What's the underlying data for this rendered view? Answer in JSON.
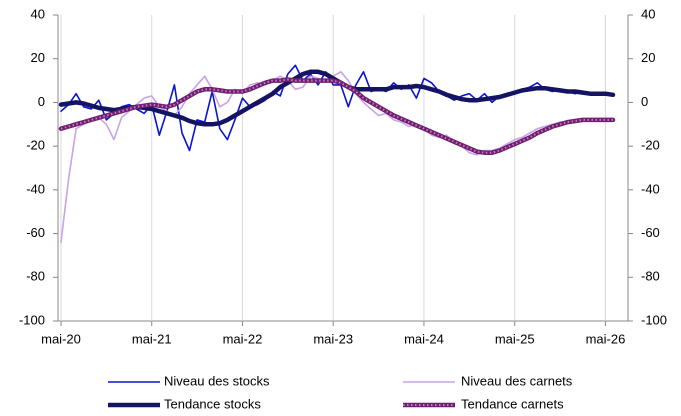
{
  "chart_data": {
    "type": "line",
    "categories": [
      "mai-20",
      null,
      null,
      null,
      null,
      null,
      null,
      null,
      null,
      null,
      null,
      null,
      "mai-21",
      null,
      null,
      null,
      null,
      null,
      null,
      null,
      null,
      null,
      null,
      null,
      "mai-22",
      null,
      null,
      null,
      null,
      null,
      null,
      null,
      null,
      null,
      null,
      null,
      "mai-23",
      null,
      null,
      null,
      null,
      null,
      null,
      null,
      null,
      null,
      null,
      null,
      "mai-24",
      null,
      null,
      null,
      null,
      null,
      null,
      null,
      null,
      null,
      null,
      null,
      "mai-25",
      null,
      null,
      null,
      null,
      null,
      null,
      null,
      null,
      null,
      null,
      null,
      "mai-26",
      null
    ],
    "ylim": [
      -100,
      40
    ],
    "yticks": [
      40,
      20,
      0,
      -20,
      -40,
      -60,
      -80,
      -100
    ],
    "y2lim": [
      -100,
      40
    ],
    "y2ticks": [
      40,
      20,
      0,
      -20,
      -40,
      -60,
      -80,
      -100
    ],
    "grid": "x",
    "series": [
      {
        "name": "Niveau des stocks",
        "color": "#0a14d2",
        "width": 1.6,
        "values": [
          -4,
          -1,
          4,
          -2,
          -3,
          1,
          -8,
          -5,
          -2,
          -1,
          -3,
          -5,
          -1,
          -15,
          -4,
          8,
          -14,
          -22,
          -8,
          -9,
          5,
          -12,
          -17,
          -8,
          2,
          -2,
          -1,
          1,
          5,
          3,
          13,
          17,
          10,
          13,
          8,
          14,
          8,
          8,
          -2,
          8,
          14,
          5,
          6,
          5,
          9,
          6,
          8,
          2,
          11,
          9,
          5,
          3,
          1,
          3,
          4,
          1,
          4,
          0,
          3,
          4,
          5,
          6,
          7,
          9,
          6,
          5,
          6,
          5,
          4,
          5,
          4,
          4,
          4,
          4
        ]
      },
      {
        "name": "Niveau des carnets",
        "color": "#c9a2ea",
        "width": 1.6,
        "values": [
          -64,
          -35,
          -12,
          -10,
          -8,
          -7,
          -10,
          -17,
          -7,
          -4,
          -1,
          2,
          3,
          -2,
          -4,
          -6,
          -2,
          4,
          8,
          12,
          6,
          -2,
          0,
          6,
          4,
          8,
          9,
          8,
          10,
          12,
          10,
          6,
          7,
          12,
          11,
          10,
          12,
          14,
          10,
          4,
          0,
          -3,
          -6,
          -5,
          -8,
          -9,
          -11,
          -10,
          -12,
          -15,
          -16,
          -15,
          -18,
          -20,
          -23,
          -24,
          -22,
          -22,
          -21,
          -19,
          -17,
          -16,
          -14,
          -12,
          -11,
          -10,
          -9,
          -9,
          -8,
          -8,
          -8,
          -8,
          -8,
          -8
        ]
      },
      {
        "name": "Tendance stocks",
        "color": "#141463",
        "width": 4.5,
        "values": [
          -1,
          -0.5,
          0,
          -0.5,
          -1.5,
          -2.5,
          -3,
          -3.5,
          -3,
          -2.5,
          -2,
          -2.5,
          -3,
          -4,
          -5,
          -6,
          -7,
          -8.5,
          -9.5,
          -10,
          -10,
          -9.5,
          -8,
          -6,
          -4,
          -2,
          0,
          2,
          4,
          7,
          9,
          11,
          13,
          14,
          14,
          13,
          11,
          9,
          7,
          6,
          6,
          6,
          6,
          6,
          7,
          7,
          7,
          7.5,
          7,
          6,
          5,
          3.5,
          2.5,
          1.5,
          1,
          1,
          1.5,
          2,
          2.5,
          3.5,
          4.5,
          5.5,
          6,
          6.5,
          6.5,
          6,
          5.5,
          5,
          5,
          4.5,
          4,
          4,
          4,
          3.5
        ]
      },
      {
        "name": "Tendance carnets",
        "color": "#6e1f6e",
        "width": 4.5,
        "dot_color": "#c77ac7",
        "values": [
          -12,
          -11,
          -10,
          -9,
          -8,
          -7,
          -6,
          -5,
          -4,
          -3,
          -2,
          -1.5,
          -1,
          -1.5,
          -2,
          -1,
          1,
          3,
          5,
          6,
          6,
          5.5,
          5,
          5,
          5,
          6,
          7.5,
          9,
          10,
          10,
          10.5,
          10,
          10,
          10,
          10,
          10,
          10,
          9,
          7,
          5,
          2,
          0,
          -2,
          -4,
          -6,
          -7.5,
          -9,
          -10.5,
          -12,
          -13.5,
          -15,
          -16.5,
          -18,
          -19.5,
          -21,
          -22.5,
          -23,
          -23,
          -22,
          -20.5,
          -19,
          -17.5,
          -16,
          -14,
          -12.5,
          -11,
          -10,
          -9,
          -8.5,
          -8,
          -8,
          -8,
          -8,
          -8
        ]
      }
    ]
  }
}
